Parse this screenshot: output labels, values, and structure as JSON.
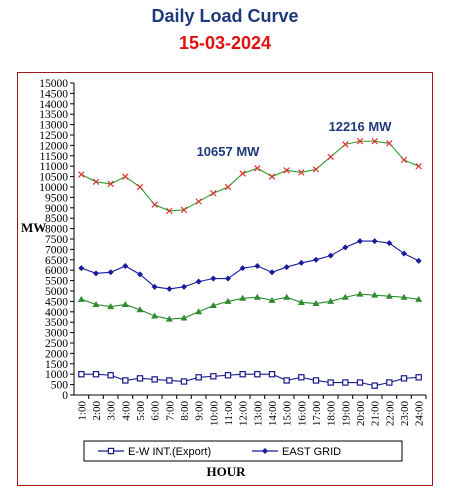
{
  "header": {
    "title": "Daily Load Curve",
    "date": "15-03-2024"
  },
  "chart_data": {
    "type": "line",
    "title": "Daily Load Curve",
    "subtitle": "15-03-2024",
    "xlabel": "HOUR",
    "ylabel": "MW",
    "ylim": [
      0,
      15000
    ],
    "ytick_step": 500,
    "grid": false,
    "legend_position": "bottom",
    "categories": [
      "1:00",
      "2:00",
      "3:00",
      "4:00",
      "5:00",
      "6:00",
      "7:00",
      "8:00",
      "9:00",
      "10:00",
      "11:00",
      "12:00",
      "13:00",
      "14:00",
      "15:00",
      "16:00",
      "17:00",
      "18:00",
      "19:00",
      "20:00",
      "21:00",
      "22:00",
      "23:00",
      "24:00"
    ],
    "series": [
      {
        "name": "E-W INT.(Export)",
        "color": "#1a1a8c",
        "marker": "open-square",
        "values": [
          1000,
          1000,
          950,
          700,
          800,
          750,
          700,
          650,
          850,
          900,
          950,
          1000,
          1000,
          1000,
          700,
          850,
          700,
          600,
          600,
          600,
          450,
          600,
          800,
          850
        ]
      },
      {
        "name": "EAST GRID",
        "color": "#1a1a9c",
        "marker": "diamond",
        "values": [
          6100,
          5850,
          5900,
          6200,
          5800,
          5200,
          5100,
          5200,
          5450,
          5600,
          5600,
          6100,
          6200,
          5900,
          6150,
          6350,
          6500,
          6700,
          7100,
          7400,
          7400,
          7300,
          6800,
          6450
        ]
      },
      {
        "name": "",
        "color": "#2e8b2e",
        "marker": "triangle",
        "values": [
          4600,
          4350,
          4250,
          4350,
          4100,
          3800,
          3650,
          3700,
          4000,
          4300,
          4500,
          4650,
          4700,
          4550,
          4700,
          4450,
          4400,
          4500,
          4700,
          4850,
          4800,
          4750,
          4700,
          4600
        ]
      },
      {
        "name": "",
        "color": "#e03030",
        "marker": "x",
        "values": [
          10600,
          10250,
          10150,
          10500,
          10000,
          9150,
          8850,
          8900,
          9300,
          9700,
          10000,
          10650,
          10900,
          10500,
          10800,
          10700,
          10850,
          11450,
          12050,
          12200,
          12200,
          12100,
          11300,
          11000
        ]
      }
    ],
    "annotations": [
      {
        "text": "10657 MW",
        "x": "11:00",
        "y": 11500
      },
      {
        "text": "12216 MW",
        "x": "20:00",
        "y": 12700
      }
    ]
  }
}
